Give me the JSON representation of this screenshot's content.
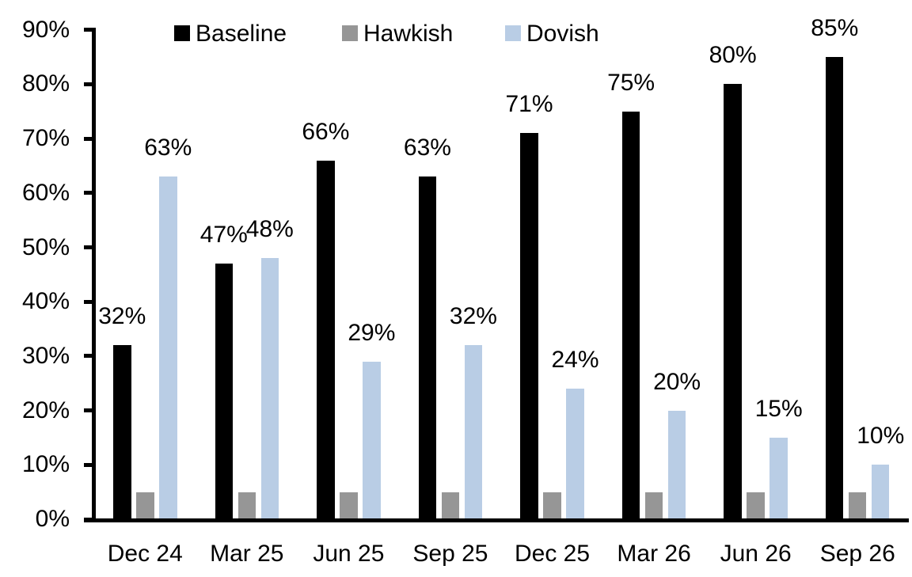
{
  "chart_data": {
    "type": "bar",
    "title": "",
    "categories": [
      "Dec 24",
      "Mar 25",
      "Jun 25",
      "Sep 25",
      "Dec 25",
      "Mar 26",
      "Jun 26",
      "Sep 26"
    ],
    "series": [
      {
        "name": "Baseline",
        "color": "#000000",
        "values": [
          32,
          47,
          66,
          63,
          71,
          75,
          80,
          85
        ],
        "labels": [
          "32%",
          "47%",
          "66%",
          "63%",
          "71%",
          "75%",
          "80%",
          "85%"
        ],
        "show_labels": true
      },
      {
        "name": "Hawkish",
        "color": "#969696",
        "values": [
          5,
          5,
          5,
          5,
          5,
          5,
          5,
          5
        ],
        "labels": [
          "",
          "",
          "",
          "",
          "",
          "",
          "",
          ""
        ],
        "show_labels": false
      },
      {
        "name": "Dovish",
        "color": "#B9CDE5",
        "values": [
          63,
          48,
          29,
          32,
          24,
          20,
          15,
          10
        ],
        "labels": [
          "63%",
          "48%",
          "29%",
          "32%",
          "24%",
          "20%",
          "15%",
          "10%"
        ],
        "show_labels": true
      }
    ],
    "y_axis": {
      "min": 0,
      "max": 90,
      "tick_step": 10,
      "tick_labels": [
        "0%",
        "10%",
        "20%",
        "30%",
        "40%",
        "50%",
        "60%",
        "70%",
        "80%",
        "90%"
      ]
    },
    "legend": {
      "position": "top",
      "entries": [
        "Baseline",
        "Hawkish",
        "Dovish"
      ]
    },
    "grid": false,
    "axis_color": "#000000"
  }
}
